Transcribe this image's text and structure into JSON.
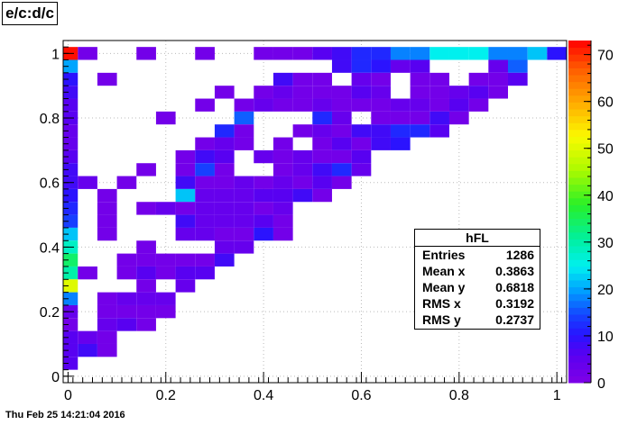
{
  "window": {
    "title": "e/c:d/c",
    "timestamp": "Thu Feb 25 14:21:04 2016"
  },
  "stats": {
    "name": "hFL",
    "rows": [
      {
        "label": "Entries",
        "value": "1286"
      },
      {
        "label": "Mean x",
        "value": "0.3863"
      },
      {
        "label": "Mean y",
        "value": "0.6818"
      },
      {
        "label": "RMS x",
        "value": "0.3192"
      },
      {
        "label": "RMS y",
        "value": "0.2737"
      }
    ]
  },
  "chart_data": {
    "type": "heatmap",
    "title": "e/c:d/c",
    "xlim": [
      -0.01,
      1.02
    ],
    "ylim": [
      -0.02,
      1.04
    ],
    "xticks": [
      "0",
      "0.2",
      "0.4",
      "0.6",
      "0.8",
      "1"
    ],
    "yticks": [
      "0",
      "0.2",
      "0.4",
      "0.6",
      "0.8",
      "1"
    ],
    "zticks": [
      "0",
      "10",
      "20",
      "30",
      "40",
      "50",
      "60",
      "70"
    ],
    "zlim": [
      0,
      73
    ],
    "grid": true,
    "bin_size": 0.04,
    "cells": [
      {
        "x": 0.0,
        "y": 1.0,
        "v": 72
      },
      {
        "x": 0.04,
        "y": 1.0,
        "v": 2
      },
      {
        "x": 0.16,
        "y": 1.0,
        "v": 2
      },
      {
        "x": 0.28,
        "y": 1.0,
        "v": 2
      },
      {
        "x": 0.4,
        "y": 1.0,
        "v": 2
      },
      {
        "x": 0.44,
        "y": 1.0,
        "v": 2
      },
      {
        "x": 0.48,
        "y": 1.0,
        "v": 2
      },
      {
        "x": 0.52,
        "y": 1.0,
        "v": 6
      },
      {
        "x": 0.56,
        "y": 1.0,
        "v": 8
      },
      {
        "x": 0.6,
        "y": 1.0,
        "v": 12
      },
      {
        "x": 0.64,
        "y": 1.0,
        "v": 12
      },
      {
        "x": 0.68,
        "y": 1.0,
        "v": 18
      },
      {
        "x": 0.72,
        "y": 1.0,
        "v": 18
      },
      {
        "x": 0.76,
        "y": 1.0,
        "v": 25
      },
      {
        "x": 0.8,
        "y": 1.0,
        "v": 25
      },
      {
        "x": 0.84,
        "y": 1.0,
        "v": 25
      },
      {
        "x": 0.88,
        "y": 1.0,
        "v": 18
      },
      {
        "x": 0.92,
        "y": 1.0,
        "v": 18
      },
      {
        "x": 0.96,
        "y": 1.0,
        "v": 22
      },
      {
        "x": 1.0,
        "y": 1.0,
        "v": 10
      },
      {
        "x": 0.0,
        "y": 0.96,
        "v": 20
      },
      {
        "x": 0.56,
        "y": 0.96,
        "v": 8
      },
      {
        "x": 0.6,
        "y": 0.96,
        "v": 12
      },
      {
        "x": 0.64,
        "y": 0.96,
        "v": 10
      },
      {
        "x": 0.68,
        "y": 0.96,
        "v": 4
      },
      {
        "x": 0.72,
        "y": 0.96,
        "v": 6
      },
      {
        "x": 0.88,
        "y": 0.96,
        "v": 4
      },
      {
        "x": 0.92,
        "y": 0.96,
        "v": 16
      },
      {
        "x": 0.0,
        "y": 0.92,
        "v": 10
      },
      {
        "x": 0.08,
        "y": 0.92,
        "v": 2
      },
      {
        "x": 0.44,
        "y": 0.92,
        "v": 8
      },
      {
        "x": 0.48,
        "y": 0.92,
        "v": 2
      },
      {
        "x": 0.52,
        "y": 0.92,
        "v": 2
      },
      {
        "x": 0.6,
        "y": 0.92,
        "v": 4
      },
      {
        "x": 0.64,
        "y": 0.92,
        "v": 2
      },
      {
        "x": 0.72,
        "y": 0.92,
        "v": 2
      },
      {
        "x": 0.76,
        "y": 0.92,
        "v": 2
      },
      {
        "x": 0.84,
        "y": 0.92,
        "v": 2
      },
      {
        "x": 0.88,
        "y": 0.92,
        "v": 2
      },
      {
        "x": 0.92,
        "y": 0.92,
        "v": 6
      },
      {
        "x": 0.0,
        "y": 0.88,
        "v": 8
      },
      {
        "x": 0.32,
        "y": 0.88,
        "v": 2
      },
      {
        "x": 0.4,
        "y": 0.88,
        "v": 2
      },
      {
        "x": 0.44,
        "y": 0.88,
        "v": 4
      },
      {
        "x": 0.48,
        "y": 0.88,
        "v": 2
      },
      {
        "x": 0.52,
        "y": 0.88,
        "v": 2
      },
      {
        "x": 0.56,
        "y": 0.88,
        "v": 2
      },
      {
        "x": 0.6,
        "y": 0.88,
        "v": 6
      },
      {
        "x": 0.64,
        "y": 0.88,
        "v": 4
      },
      {
        "x": 0.72,
        "y": 0.88,
        "v": 2
      },
      {
        "x": 0.76,
        "y": 0.88,
        "v": 2
      },
      {
        "x": 0.8,
        "y": 0.88,
        "v": 4
      },
      {
        "x": 0.84,
        "y": 0.88,
        "v": 6
      },
      {
        "x": 0.88,
        "y": 0.88,
        "v": 2
      },
      {
        "x": 0.0,
        "y": 0.84,
        "v": 6
      },
      {
        "x": 0.28,
        "y": 0.84,
        "v": 2
      },
      {
        "x": 0.36,
        "y": 0.84,
        "v": 2
      },
      {
        "x": 0.4,
        "y": 0.84,
        "v": 4
      },
      {
        "x": 0.44,
        "y": 0.84,
        "v": 2
      },
      {
        "x": 0.48,
        "y": 0.84,
        "v": 2
      },
      {
        "x": 0.52,
        "y": 0.84,
        "v": 4
      },
      {
        "x": 0.56,
        "y": 0.84,
        "v": 2
      },
      {
        "x": 0.6,
        "y": 0.84,
        "v": 2
      },
      {
        "x": 0.64,
        "y": 0.84,
        "v": 2
      },
      {
        "x": 0.68,
        "y": 0.84,
        "v": 4
      },
      {
        "x": 0.72,
        "y": 0.84,
        "v": 4
      },
      {
        "x": 0.76,
        "y": 0.84,
        "v": 2
      },
      {
        "x": 0.8,
        "y": 0.84,
        "v": 6
      },
      {
        "x": 0.84,
        "y": 0.84,
        "v": 2
      },
      {
        "x": 0.0,
        "y": 0.8,
        "v": 6
      },
      {
        "x": 0.2,
        "y": 0.8,
        "v": 2
      },
      {
        "x": 0.36,
        "y": 0.8,
        "v": 16
      },
      {
        "x": 0.52,
        "y": 0.8,
        "v": 12
      },
      {
        "x": 0.56,
        "y": 0.8,
        "v": 4
      },
      {
        "x": 0.64,
        "y": 0.8,
        "v": 2
      },
      {
        "x": 0.68,
        "y": 0.8,
        "v": 2
      },
      {
        "x": 0.72,
        "y": 0.8,
        "v": 2
      },
      {
        "x": 0.76,
        "y": 0.8,
        "v": 8
      },
      {
        "x": 0.8,
        "y": 0.8,
        "v": 2
      },
      {
        "x": 0.0,
        "y": 0.76,
        "v": 4
      },
      {
        "x": 0.32,
        "y": 0.76,
        "v": 12
      },
      {
        "x": 0.36,
        "y": 0.76,
        "v": 2
      },
      {
        "x": 0.48,
        "y": 0.76,
        "v": 2
      },
      {
        "x": 0.52,
        "y": 0.76,
        "v": 4
      },
      {
        "x": 0.56,
        "y": 0.76,
        "v": 2
      },
      {
        "x": 0.6,
        "y": 0.76,
        "v": 8
      },
      {
        "x": 0.64,
        "y": 0.76,
        "v": 8
      },
      {
        "x": 0.68,
        "y": 0.76,
        "v": 12
      },
      {
        "x": 0.72,
        "y": 0.76,
        "v": 12
      },
      {
        "x": 0.76,
        "y": 0.76,
        "v": 6
      },
      {
        "x": 0.0,
        "y": 0.72,
        "v": 4
      },
      {
        "x": 0.28,
        "y": 0.72,
        "v": 2
      },
      {
        "x": 0.32,
        "y": 0.72,
        "v": 4
      },
      {
        "x": 0.36,
        "y": 0.72,
        "v": 2
      },
      {
        "x": 0.44,
        "y": 0.72,
        "v": 2
      },
      {
        "x": 0.52,
        "y": 0.72,
        "v": 2
      },
      {
        "x": 0.56,
        "y": 0.72,
        "v": 6
      },
      {
        "x": 0.6,
        "y": 0.72,
        "v": 2
      },
      {
        "x": 0.64,
        "y": 0.72,
        "v": 8
      },
      {
        "x": 0.68,
        "y": 0.72,
        "v": 10
      },
      {
        "x": 0.0,
        "y": 0.68,
        "v": 6
      },
      {
        "x": 0.24,
        "y": 0.68,
        "v": 2
      },
      {
        "x": 0.28,
        "y": 0.68,
        "v": 8
      },
      {
        "x": 0.32,
        "y": 0.68,
        "v": 6
      },
      {
        "x": 0.4,
        "y": 0.68,
        "v": 4
      },
      {
        "x": 0.44,
        "y": 0.68,
        "v": 2
      },
      {
        "x": 0.48,
        "y": 0.68,
        "v": 4
      },
      {
        "x": 0.52,
        "y": 0.68,
        "v": 2
      },
      {
        "x": 0.56,
        "y": 0.68,
        "v": 2
      },
      {
        "x": 0.6,
        "y": 0.68,
        "v": 6
      },
      {
        "x": 0.0,
        "y": 0.64,
        "v": 8
      },
      {
        "x": 0.16,
        "y": 0.64,
        "v": 2
      },
      {
        "x": 0.24,
        "y": 0.64,
        "v": 2
      },
      {
        "x": 0.28,
        "y": 0.64,
        "v": 14
      },
      {
        "x": 0.32,
        "y": 0.64,
        "v": 2
      },
      {
        "x": 0.44,
        "y": 0.64,
        "v": 2
      },
      {
        "x": 0.48,
        "y": 0.64,
        "v": 4
      },
      {
        "x": 0.52,
        "y": 0.64,
        "v": 8
      },
      {
        "x": 0.56,
        "y": 0.64,
        "v": 12
      },
      {
        "x": 0.6,
        "y": 0.64,
        "v": 4
      },
      {
        "x": 0.0,
        "y": 0.6,
        "v": 8
      },
      {
        "x": 0.04,
        "y": 0.6,
        "v": 4
      },
      {
        "x": 0.12,
        "y": 0.6,
        "v": 2
      },
      {
        "x": 0.24,
        "y": 0.6,
        "v": 8
      },
      {
        "x": 0.28,
        "y": 0.6,
        "v": 2
      },
      {
        "x": 0.32,
        "y": 0.6,
        "v": 2
      },
      {
        "x": 0.36,
        "y": 0.6,
        "v": 4
      },
      {
        "x": 0.4,
        "y": 0.6,
        "v": 2
      },
      {
        "x": 0.44,
        "y": 0.6,
        "v": 4
      },
      {
        "x": 0.48,
        "y": 0.6,
        "v": 2
      },
      {
        "x": 0.52,
        "y": 0.6,
        "v": 6
      },
      {
        "x": 0.56,
        "y": 0.6,
        "v": 2
      },
      {
        "x": 0.0,
        "y": 0.56,
        "v": 10
      },
      {
        "x": 0.08,
        "y": 0.56,
        "v": 2
      },
      {
        "x": 0.24,
        "y": 0.56,
        "v": 22
      },
      {
        "x": 0.28,
        "y": 0.56,
        "v": 4
      },
      {
        "x": 0.32,
        "y": 0.56,
        "v": 4
      },
      {
        "x": 0.36,
        "y": 0.56,
        "v": 4
      },
      {
        "x": 0.4,
        "y": 0.56,
        "v": 6
      },
      {
        "x": 0.44,
        "y": 0.56,
        "v": 6
      },
      {
        "x": 0.48,
        "y": 0.56,
        "v": 8
      },
      {
        "x": 0.52,
        "y": 0.56,
        "v": 2
      },
      {
        "x": 0.0,
        "y": 0.52,
        "v": 12
      },
      {
        "x": 0.08,
        "y": 0.52,
        "v": 2
      },
      {
        "x": 0.16,
        "y": 0.52,
        "v": 2
      },
      {
        "x": 0.2,
        "y": 0.52,
        "v": 4
      },
      {
        "x": 0.24,
        "y": 0.52,
        "v": 2
      },
      {
        "x": 0.28,
        "y": 0.52,
        "v": 4
      },
      {
        "x": 0.32,
        "y": 0.52,
        "v": 4
      },
      {
        "x": 0.36,
        "y": 0.52,
        "v": 4
      },
      {
        "x": 0.4,
        "y": 0.52,
        "v": 2
      },
      {
        "x": 0.44,
        "y": 0.52,
        "v": 4
      },
      {
        "x": 0.0,
        "y": 0.48,
        "v": 14
      },
      {
        "x": 0.08,
        "y": 0.48,
        "v": 2
      },
      {
        "x": 0.24,
        "y": 0.48,
        "v": 8
      },
      {
        "x": 0.28,
        "y": 0.48,
        "v": 4
      },
      {
        "x": 0.32,
        "y": 0.48,
        "v": 4
      },
      {
        "x": 0.36,
        "y": 0.48,
        "v": 4
      },
      {
        "x": 0.4,
        "y": 0.48,
        "v": 6
      },
      {
        "x": 0.44,
        "y": 0.48,
        "v": 2
      },
      {
        "x": 0.0,
        "y": 0.44,
        "v": 22
      },
      {
        "x": 0.08,
        "y": 0.44,
        "v": 2
      },
      {
        "x": 0.24,
        "y": 0.44,
        "v": 4
      },
      {
        "x": 0.28,
        "y": 0.44,
        "v": 4
      },
      {
        "x": 0.32,
        "y": 0.44,
        "v": 2
      },
      {
        "x": 0.36,
        "y": 0.44,
        "v": 2
      },
      {
        "x": 0.4,
        "y": 0.44,
        "v": 10
      },
      {
        "x": 0.44,
        "y": 0.44,
        "v": 2
      },
      {
        "x": 0.0,
        "y": 0.4,
        "v": 28
      },
      {
        "x": 0.16,
        "y": 0.4,
        "v": 2
      },
      {
        "x": 0.32,
        "y": 0.4,
        "v": 4
      },
      {
        "x": 0.36,
        "y": 0.4,
        "v": 4
      },
      {
        "x": 0.0,
        "y": 0.36,
        "v": 34
      },
      {
        "x": 0.12,
        "y": 0.36,
        "v": 2
      },
      {
        "x": 0.16,
        "y": 0.36,
        "v": 2
      },
      {
        "x": 0.2,
        "y": 0.36,
        "v": 2
      },
      {
        "x": 0.24,
        "y": 0.36,
        "v": 2
      },
      {
        "x": 0.28,
        "y": 0.36,
        "v": 2
      },
      {
        "x": 0.32,
        "y": 0.36,
        "v": 8
      },
      {
        "x": 0.0,
        "y": 0.32,
        "v": 30
      },
      {
        "x": 0.04,
        "y": 0.32,
        "v": 2
      },
      {
        "x": 0.12,
        "y": 0.32,
        "v": 2
      },
      {
        "x": 0.16,
        "y": 0.32,
        "v": 6
      },
      {
        "x": 0.2,
        "y": 0.32,
        "v": 2
      },
      {
        "x": 0.24,
        "y": 0.32,
        "v": 6
      },
      {
        "x": 0.28,
        "y": 0.32,
        "v": 6
      },
      {
        "x": 0.0,
        "y": 0.28,
        "v": 50
      },
      {
        "x": 0.16,
        "y": 0.28,
        "v": 2
      },
      {
        "x": 0.24,
        "y": 0.28,
        "v": 4
      },
      {
        "x": 0.0,
        "y": 0.24,
        "v": 18
      },
      {
        "x": 0.08,
        "y": 0.24,
        "v": 2
      },
      {
        "x": 0.12,
        "y": 0.24,
        "v": 4
      },
      {
        "x": 0.16,
        "y": 0.24,
        "v": 4
      },
      {
        "x": 0.2,
        "y": 0.24,
        "v": 4
      },
      {
        "x": 0.0,
        "y": 0.2,
        "v": 4
      },
      {
        "x": 0.08,
        "y": 0.2,
        "v": 2
      },
      {
        "x": 0.12,
        "y": 0.2,
        "v": 2
      },
      {
        "x": 0.16,
        "y": 0.2,
        "v": 2
      },
      {
        "x": 0.2,
        "y": 0.2,
        "v": 2
      },
      {
        "x": 0.0,
        "y": 0.16,
        "v": 2
      },
      {
        "x": 0.08,
        "y": 0.16,
        "v": 4
      },
      {
        "x": 0.12,
        "y": 0.16,
        "v": 6
      },
      {
        "x": 0.16,
        "y": 0.16,
        "v": 2
      },
      {
        "x": 0.0,
        "y": 0.12,
        "v": 6
      },
      {
        "x": 0.04,
        "y": 0.12,
        "v": 4
      },
      {
        "x": 0.08,
        "y": 0.12,
        "v": 2
      },
      {
        "x": 0.0,
        "y": 0.08,
        "v": 6
      },
      {
        "x": 0.04,
        "y": 0.08,
        "v": 8
      },
      {
        "x": 0.08,
        "y": 0.08,
        "v": 2
      },
      {
        "x": 0.0,
        "y": 0.04,
        "v": 6
      }
    ]
  }
}
